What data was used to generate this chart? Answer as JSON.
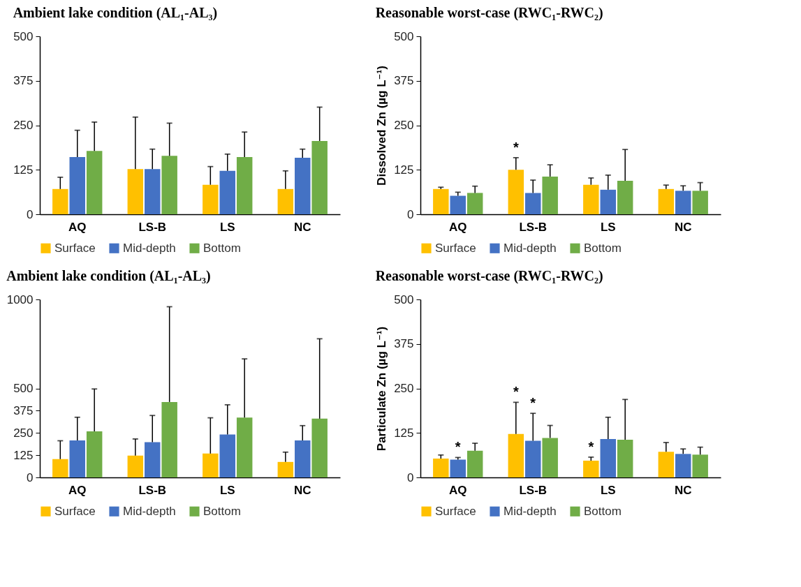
{
  "chart_data": [
    {
      "type": "bar",
      "title": "Ambient lake condition (AL₁-AL₃)",
      "categories": [
        "AQ",
        "LS-B",
        "LS",
        "NC"
      ],
      "ylim": [
        0,
        500
      ],
      "yticks": [
        0,
        125,
        250,
        375,
        500
      ],
      "grid": false,
      "legend": "bottom",
      "series": [
        {
          "name": "Surface",
          "color": "#ffc000",
          "values": [
            71,
            127,
            83,
            71
          ],
          "errors": [
            [
              71,
              104
            ],
            [
              127,
              273
            ],
            [
              83,
              134
            ],
            [
              71,
              122
            ]
          ]
        },
        {
          "name": "Mid-depth",
          "color": "#4472c4",
          "values": [
            161,
            127,
            122,
            159
          ],
          "errors": [
            [
              161,
              236
            ],
            [
              127,
              183
            ],
            [
              122,
              169
            ],
            [
              159,
              183
            ]
          ]
        },
        {
          "name": "Bottom",
          "color": "#70ad47",
          "values": [
            178,
            164,
            161,
            206
          ],
          "errors": [
            [
              178,
              259
            ],
            [
              164,
              256
            ],
            [
              161,
              231
            ],
            [
              206,
              301
            ]
          ]
        }
      ]
    },
    {
      "type": "bar",
      "title": "Reasonable worst-case (RWC₁-RWC₂)",
      "ylabel": "Dissolved Zn (µg L⁻¹)",
      "categories": [
        "AQ",
        "LS-B",
        "LS",
        "NC"
      ],
      "ylim": [
        0,
        500
      ],
      "yticks": [
        0,
        125,
        250,
        375,
        500
      ],
      "grid": false,
      "legend": "bottom",
      "series": [
        {
          "name": "Surface",
          "color": "#ffc000",
          "value_labels": [
            null,
            "*",
            null,
            null
          ],
          "values": [
            71,
            125,
            83,
            71
          ],
          "errors": [
            [
              71,
              76
            ],
            [
              125,
              159
            ],
            [
              83,
              102
            ],
            [
              71,
              82
            ]
          ]
        },
        {
          "name": "Mid-depth",
          "color": "#4472c4",
          "values": [
            52,
            60,
            69,
            66
          ],
          "errors": [
            [
              52,
              62
            ],
            [
              60,
              96
            ],
            [
              69,
              110
            ],
            [
              66,
              80
            ]
          ]
        },
        {
          "name": "Bottom",
          "color": "#70ad47",
          "values": [
            60,
            106,
            94,
            66
          ],
          "errors": [
            [
              60,
              79
            ],
            [
              106,
              139
            ],
            [
              94,
              182
            ],
            [
              66,
              89
            ]
          ]
        }
      ]
    },
    {
      "type": "bar",
      "title": "Ambient lake condition (AL₁-AL₃)",
      "categories": [
        "AQ",
        "LS-B",
        "LS",
        "NC"
      ],
      "ylim": [
        0,
        1000
      ],
      "yticks": [
        0,
        125,
        250,
        375,
        500,
        1000
      ],
      "grid": false,
      "legend": "bottom",
      "series": [
        {
          "name": "Surface",
          "color": "#ffc000",
          "values": [
            103,
            123,
            134,
            87
          ],
          "errors": [
            [
              103,
              206
            ],
            [
              123,
              216
            ],
            [
              134,
              335
            ],
            [
              87,
              142
            ]
          ]
        },
        {
          "name": "Mid-depth",
          "color": "#4472c4",
          "values": [
            208,
            198,
            241,
            208
          ],
          "errors": [
            [
              208,
              338
            ],
            [
              198,
              348
            ],
            [
              241,
              408
            ],
            [
              208,
              291
            ]
          ]
        },
        {
          "name": "Bottom",
          "color": "#70ad47",
          "values": [
            259,
            424,
            336,
            330
          ],
          "errors": [
            [
              259,
              497
            ],
            [
              424,
              959
            ],
            [
              336,
              666
            ],
            [
              330,
              779
            ]
          ]
        }
      ]
    },
    {
      "type": "bar",
      "title": "Reasonable worst-case (RWC₁-RWC₂)",
      "ylabel": "Particulate Zn (µg L⁻¹)",
      "categories": [
        "AQ",
        "LS-B",
        "LS",
        "NC"
      ],
      "ylim": [
        0,
        500
      ],
      "yticks": [
        0,
        125,
        250,
        375,
        500
      ],
      "grid": false,
      "legend": "bottom",
      "series": [
        {
          "name": "Surface",
          "color": "#ffc000",
          "value_labels": [
            null,
            "*",
            "*",
            null
          ],
          "values": [
            53,
            122,
            47,
            72
          ],
          "errors": [
            [
              53,
              63
            ],
            [
              122,
              211
            ],
            [
              47,
              57
            ],
            [
              72,
              98
            ]
          ]
        },
        {
          "name": "Mid-depth",
          "color": "#4472c4",
          "value_labels": [
            "*",
            "*",
            null,
            null
          ],
          "values": [
            50,
            103,
            108,
            66
          ],
          "errors": [
            [
              50,
              56
            ],
            [
              103,
              180
            ],
            [
              108,
              169
            ],
            [
              66,
              80
            ]
          ]
        },
        {
          "name": "Bottom",
          "color": "#70ad47",
          "values": [
            75,
            111,
            106,
            64
          ],
          "errors": [
            [
              75,
              96
            ],
            [
              111,
              146
            ],
            [
              106,
              219
            ],
            [
              64,
              85
            ]
          ]
        }
      ]
    }
  ]
}
